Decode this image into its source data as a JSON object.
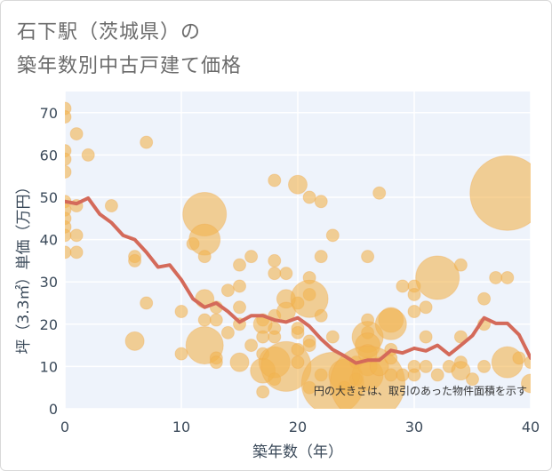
{
  "title_line1": "石下駅（茨城県）の",
  "title_line2": "築年数別中古戸建て価格",
  "colors": {
    "plot_bg": "#eef3fb",
    "grid": "#ffffff",
    "bubble": "#f2b450",
    "line": "#d46a5a"
  },
  "chart_data": {
    "type": "scatter",
    "title": "石下駅（茨城県）の 築年数別中古戸建て価格",
    "xlabel": "築年数（年）",
    "ylabel": "坪（3.3㎡）単価（万円）",
    "xlim": [
      0,
      40
    ],
    "ylim": [
      0,
      75
    ],
    "x_ticks": [
      0,
      10,
      20,
      30,
      40
    ],
    "y_ticks": [
      0,
      10,
      20,
      30,
      40,
      50,
      60,
      70
    ],
    "note": "円の大きさは、取引のあった物件面積を示す",
    "bubbles": [
      {
        "x": 0,
        "y": 71,
        "s": 1
      },
      {
        "x": 0,
        "y": 69,
        "s": 1
      },
      {
        "x": 0,
        "y": 61,
        "s": 1
      },
      {
        "x": 0,
        "y": 59,
        "s": 1
      },
      {
        "x": 0,
        "y": 56,
        "s": 1
      },
      {
        "x": 0,
        "y": 49,
        "s": 1
      },
      {
        "x": 0,
        "y": 47,
        "s": 1
      },
      {
        "x": 0,
        "y": 45,
        "s": 1
      },
      {
        "x": 0,
        "y": 43,
        "s": 1
      },
      {
        "x": 0,
        "y": 41,
        "s": 1
      },
      {
        "x": 0,
        "y": 37,
        "s": 1
      },
      {
        "x": 1,
        "y": 65,
        "s": 1
      },
      {
        "x": 1,
        "y": 48,
        "s": 1
      },
      {
        "x": 1,
        "y": 41,
        "s": 1
      },
      {
        "x": 1,
        "y": 37,
        "s": 1
      },
      {
        "x": 2,
        "y": 60,
        "s": 1
      },
      {
        "x": 4,
        "y": 48,
        "s": 1
      },
      {
        "x": 6,
        "y": 36,
        "s": 1
      },
      {
        "x": 6,
        "y": 35,
        "s": 1
      },
      {
        "x": 6,
        "y": 16,
        "s": 1.5
      },
      {
        "x": 7,
        "y": 63,
        "s": 1
      },
      {
        "x": 7,
        "y": 25,
        "s": 1
      },
      {
        "x": 10,
        "y": 23,
        "s": 1
      },
      {
        "x": 10,
        "y": 13,
        "s": 1
      },
      {
        "x": 11,
        "y": 39,
        "s": 1
      },
      {
        "x": 12,
        "y": 46,
        "s": 3.5
      },
      {
        "x": 12,
        "y": 40,
        "s": 2.5
      },
      {
        "x": 12,
        "y": 36,
        "s": 1
      },
      {
        "x": 12,
        "y": 26,
        "s": 1.5
      },
      {
        "x": 12,
        "y": 21,
        "s": 1
      },
      {
        "x": 12,
        "y": 15,
        "s": 3
      },
      {
        "x": 13,
        "y": 24,
        "s": 1
      },
      {
        "x": 13,
        "y": 21,
        "s": 1
      },
      {
        "x": 13,
        "y": 12,
        "s": 1
      },
      {
        "x": 13,
        "y": 11,
        "s": 1
      },
      {
        "x": 14,
        "y": 28,
        "s": 1
      },
      {
        "x": 14,
        "y": 18,
        "s": 1
      },
      {
        "x": 15,
        "y": 34,
        "s": 1
      },
      {
        "x": 15,
        "y": 29,
        "s": 1
      },
      {
        "x": 15,
        "y": 24,
        "s": 1
      },
      {
        "x": 15,
        "y": 20,
        "s": 1
      },
      {
        "x": 15,
        "y": 11,
        "s": 1.5
      },
      {
        "x": 16,
        "y": 36,
        "s": 1
      },
      {
        "x": 16,
        "y": 15,
        "s": 1
      },
      {
        "x": 17,
        "y": 21,
        "s": 1
      },
      {
        "x": 17,
        "y": 20,
        "s": 1.5
      },
      {
        "x": 17,
        "y": 17,
        "s": 1
      },
      {
        "x": 17,
        "y": 13,
        "s": 1
      },
      {
        "x": 17,
        "y": 9,
        "s": 2
      },
      {
        "x": 17,
        "y": 4,
        "s": 1
      },
      {
        "x": 18,
        "y": 54,
        "s": 1
      },
      {
        "x": 18,
        "y": 35,
        "s": 1
      },
      {
        "x": 18,
        "y": 32,
        "s": 1
      },
      {
        "x": 18,
        "y": 22,
        "s": 1
      },
      {
        "x": 18,
        "y": 19,
        "s": 1
      },
      {
        "x": 18,
        "y": 17,
        "s": 1
      },
      {
        "x": 18,
        "y": 11,
        "s": 2.5
      },
      {
        "x": 18,
        "y": 7,
        "s": 1
      },
      {
        "x": 19,
        "y": 32,
        "s": 1
      },
      {
        "x": 19,
        "y": 26,
        "s": 1.5
      },
      {
        "x": 19,
        "y": 23,
        "s": 1.5
      },
      {
        "x": 19,
        "y": 10,
        "s": 4
      },
      {
        "x": 20,
        "y": 53,
        "s": 1.5
      },
      {
        "x": 20,
        "y": 25,
        "s": 1
      },
      {
        "x": 20,
        "y": 19,
        "s": 1
      },
      {
        "x": 20,
        "y": 18,
        "s": 1
      },
      {
        "x": 20,
        "y": 14,
        "s": 1
      },
      {
        "x": 20,
        "y": 11,
        "s": 1
      },
      {
        "x": 21,
        "y": 50,
        "s": 1
      },
      {
        "x": 21,
        "y": 31,
        "s": 1
      },
      {
        "x": 21,
        "y": 27,
        "s": 1
      },
      {
        "x": 21,
        "y": 26,
        "s": 3
      },
      {
        "x": 21,
        "y": 16,
        "s": 1
      },
      {
        "x": 21,
        "y": 15,
        "s": 1
      },
      {
        "x": 21,
        "y": 5,
        "s": 1
      },
      {
        "x": 22,
        "y": 49,
        "s": 1
      },
      {
        "x": 22,
        "y": 36,
        "s": 1
      },
      {
        "x": 22,
        "y": 22,
        "s": 1
      },
      {
        "x": 22,
        "y": 8,
        "s": 1
      },
      {
        "x": 23,
        "y": 41,
        "s": 1
      },
      {
        "x": 23,
        "y": 17,
        "s": 1
      },
      {
        "x": 23,
        "y": 6,
        "s": 5
      },
      {
        "x": 24,
        "y": 8,
        "s": 2.5
      },
      {
        "x": 24,
        "y": 5,
        "s": 1
      },
      {
        "x": 25,
        "y": 11,
        "s": 1
      },
      {
        "x": 25,
        "y": 7,
        "s": 1
      },
      {
        "x": 26,
        "y": 36,
        "s": 1
      },
      {
        "x": 26,
        "y": 21,
        "s": 1
      },
      {
        "x": 26,
        "y": 18,
        "s": 1
      },
      {
        "x": 26,
        "y": 17,
        "s": 2.5
      },
      {
        "x": 26,
        "y": 15,
        "s": 2
      },
      {
        "x": 26,
        "y": 13,
        "s": 1.5
      },
      {
        "x": 26,
        "y": 10,
        "s": 1.5
      },
      {
        "x": 26,
        "y": 8,
        "s": 2.5
      },
      {
        "x": 26,
        "y": 6,
        "s": 6
      },
      {
        "x": 27,
        "y": 51,
        "s": 1
      },
      {
        "x": 27,
        "y": 10,
        "s": 1.5
      },
      {
        "x": 28,
        "y": 21,
        "s": 2
      },
      {
        "x": 28,
        "y": 20,
        "s": 2.5
      },
      {
        "x": 28,
        "y": 14,
        "s": 1
      },
      {
        "x": 28,
        "y": 12,
        "s": 1
      },
      {
        "x": 28,
        "y": 8,
        "s": 1
      },
      {
        "x": 29,
        "y": 29,
        "s": 1
      },
      {
        "x": 29,
        "y": 8,
        "s": 1
      },
      {
        "x": 30,
        "y": 29,
        "s": 1
      },
      {
        "x": 30,
        "y": 27,
        "s": 1
      },
      {
        "x": 30,
        "y": 23,
        "s": 1
      },
      {
        "x": 30,
        "y": 10,
        "s": 1
      },
      {
        "x": 30,
        "y": 8,
        "s": 1
      },
      {
        "x": 31,
        "y": 24,
        "s": 1
      },
      {
        "x": 31,
        "y": 17,
        "s": 1
      },
      {
        "x": 31,
        "y": 10,
        "s": 1
      },
      {
        "x": 32,
        "y": 31,
        "s": 3.5
      },
      {
        "x": 32,
        "y": 8,
        "s": 1
      },
      {
        "x": 33,
        "y": 10,
        "s": 1
      },
      {
        "x": 34,
        "y": 34,
        "s": 1
      },
      {
        "x": 34,
        "y": 17,
        "s": 1
      },
      {
        "x": 34,
        "y": 11,
        "s": 1
      },
      {
        "x": 34,
        "y": 9,
        "s": 1.5
      },
      {
        "x": 35,
        "y": 7,
        "s": 1
      },
      {
        "x": 36,
        "y": 26,
        "s": 1
      },
      {
        "x": 36,
        "y": 20,
        "s": 1
      },
      {
        "x": 36,
        "y": 10,
        "s": 1
      },
      {
        "x": 37,
        "y": 31,
        "s": 1
      },
      {
        "x": 38,
        "y": 51,
        "s": 6
      },
      {
        "x": 38,
        "y": 31,
        "s": 1
      },
      {
        "x": 38,
        "y": 11,
        "s": 2.5
      },
      {
        "x": 39,
        "y": 12,
        "s": 1
      },
      {
        "x": 40,
        "y": 11,
        "s": 1
      },
      {
        "x": 40,
        "y": 6,
        "s": 1.5
      }
    ],
    "line": {
      "x": [
        0,
        1,
        2,
        3,
        4,
        5,
        6,
        7,
        8,
        9,
        10,
        11,
        12,
        13,
        14,
        15,
        16,
        17,
        18,
        19,
        20,
        21,
        22,
        23,
        24,
        25,
        26,
        27,
        28,
        29,
        30,
        31,
        32,
        33,
        34,
        35,
        36,
        37,
        38,
        39,
        40
      ],
      "y": [
        49,
        48.5,
        49.8,
        46,
        44,
        41,
        40,
        37,
        33.5,
        34,
        30.5,
        26,
        24,
        25,
        23,
        20.5,
        22,
        22,
        21,
        20.5,
        21.5,
        19.5,
        16.5,
        14,
        12.5,
        10.8,
        11.5,
        11.5,
        13.8,
        13.2,
        14.3,
        13.7,
        15,
        12.8,
        15,
        17.3,
        21.5,
        20.2,
        20.2,
        17.5,
        12
      ]
    }
  }
}
